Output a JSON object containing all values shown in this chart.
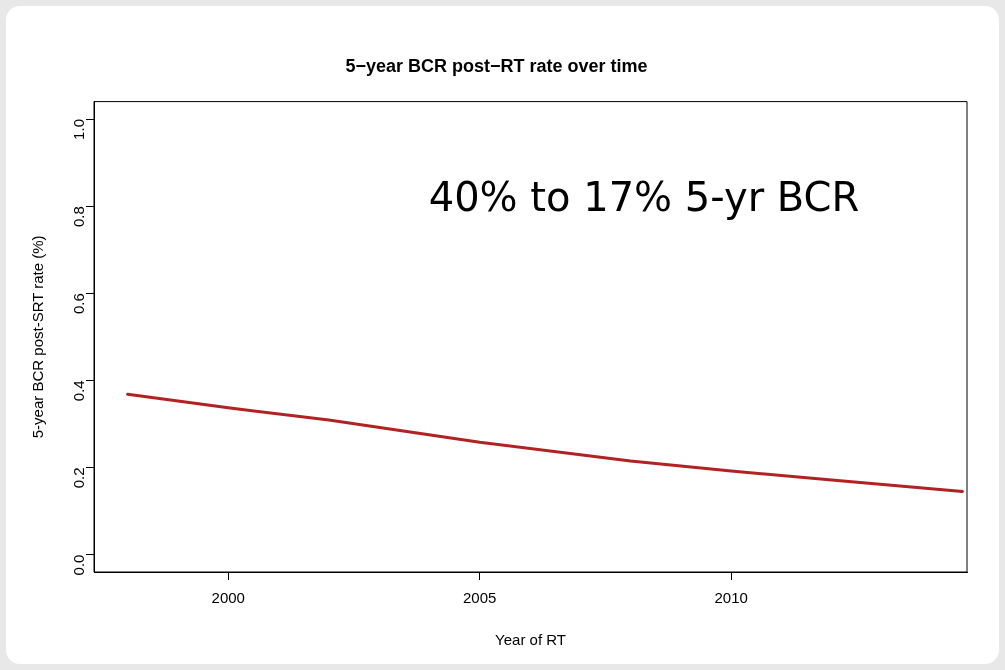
{
  "chart_data": {
    "type": "line",
    "title": "5−year BCR post−RT rate over time",
    "xlabel": "Year of RT",
    "ylabel": "5-year BCR post-SRT rate (%)",
    "annotations": [
      "40% to 17% 5-yr BCR"
    ],
    "x": [
      1998,
      2000,
      2002,
      2005,
      2008,
      2010,
      2012,
      2014.6
    ],
    "series": [
      {
        "color": "#b22222",
        "values": [
          0.368,
          0.337,
          0.309,
          0.258,
          0.215,
          0.192,
          0.171,
          0.145
        ]
      }
    ],
    "xlim": [
      1997.33,
      2014.69
    ],
    "xticks": [
      2000,
      2005,
      2010
    ],
    "ylim": [
      -0.04,
      1.04
    ],
    "yticks": [
      {
        "value": 0,
        "label": "0.0"
      },
      0.2,
      0.4,
      0.6,
      0.8,
      {
        "value": 1,
        "label": "1.0"
      }
    ],
    "grid": false,
    "legend": false,
    "marker": "none",
    "line_style": "solid"
  }
}
